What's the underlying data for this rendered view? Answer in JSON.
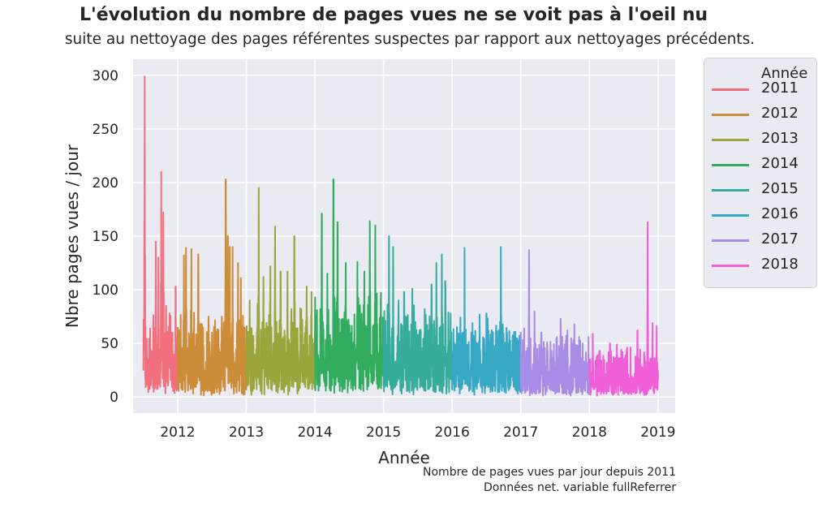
{
  "title": "L'évolution du nombre de pages vues ne se voit pas à l'oeil nu",
  "subtitle": "suite au nettoyage des pages référentes suspectes par rapport aux nettoyages précédents.",
  "caption": [
    "Nombre de pages vues par jour depuis 2011",
    "Données net. variable fullReferrer"
  ],
  "chart_data": {
    "type": "line",
    "xlabel": "Année",
    "ylabel": "Nbre pages vues / jour",
    "xlim": [
      2011.35,
      2019.25
    ],
    "ylim": [
      -15,
      315
    ],
    "xticks": [
      2012,
      2013,
      2014,
      2015,
      2016,
      2017,
      2018,
      2019
    ],
    "xtick_labels": [
      "2012",
      "2013",
      "2014",
      "2015",
      "2016",
      "2017",
      "2018",
      "2019"
    ],
    "yticks": [
      0,
      50,
      100,
      150,
      200,
      250,
      300
    ],
    "ytick_labels": [
      "0",
      "50",
      "100",
      "150",
      "200",
      "250",
      "300"
    ],
    "grid": true,
    "legend_title": "Année",
    "legend_position": "outside-right",
    "background": "#eaeaf2",
    "series": [
      {
        "name": "2011",
        "color": "#f2707e",
        "start": 2011.5,
        "end": 2012.0,
        "base": 28,
        "noise": 35,
        "peaks": [
          [
            2011.52,
            299
          ],
          [
            2011.56,
            35
          ],
          [
            2011.62,
            37
          ],
          [
            2011.68,
            145
          ],
          [
            2011.72,
            130
          ],
          [
            2011.76,
            210
          ],
          [
            2011.79,
            172
          ],
          [
            2011.83,
            85
          ],
          [
            2011.88,
            78
          ],
          [
            2011.97,
            103
          ]
        ]
      },
      {
        "name": "2012",
        "color": "#cd8c37",
        "start": 2012.0,
        "end": 2013.0,
        "base": 22,
        "noise": 40,
        "peaks": [
          [
            2012.09,
            132
          ],
          [
            2012.12,
            139
          ],
          [
            2012.2,
            138
          ],
          [
            2012.3,
            133
          ],
          [
            2012.45,
            75
          ],
          [
            2012.6,
            45
          ],
          [
            2012.7,
            203
          ],
          [
            2012.73,
            150
          ],
          [
            2012.76,
            140
          ],
          [
            2012.8,
            140
          ],
          [
            2012.88,
            125
          ],
          [
            2012.92,
            111
          ]
        ]
      },
      {
        "name": "2013",
        "color": "#9aa63b",
        "start": 2013.0,
        "end": 2014.0,
        "base": 30,
        "noise": 40,
        "peaks": [
          [
            2013.05,
            90
          ],
          [
            2013.18,
            195
          ],
          [
            2013.25,
            112
          ],
          [
            2013.35,
            122
          ],
          [
            2013.42,
            159
          ],
          [
            2013.5,
            117
          ],
          [
            2013.6,
            117
          ],
          [
            2013.7,
            150
          ],
          [
            2013.8,
            82
          ],
          [
            2013.88,
            103
          ],
          [
            2013.95,
            98
          ]
        ]
      },
      {
        "name": "2014",
        "color": "#32ad5f",
        "start": 2014.0,
        "end": 2015.0,
        "base": 35,
        "noise": 45,
        "peaks": [
          [
            2014.08,
            82
          ],
          [
            2014.1,
            171
          ],
          [
            2014.18,
            115
          ],
          [
            2014.27,
            203
          ],
          [
            2014.33,
            163
          ],
          [
            2014.45,
            125
          ],
          [
            2014.62,
            126
          ],
          [
            2014.72,
            117
          ],
          [
            2014.8,
            164
          ],
          [
            2014.88,
            160
          ],
          [
            2014.95,
            70
          ]
        ]
      },
      {
        "name": "2015",
        "color": "#36ad9c",
        "start": 2015.0,
        "end": 2016.0,
        "base": 28,
        "noise": 40,
        "peaks": [
          [
            2015.08,
            150
          ],
          [
            2015.14,
            140
          ],
          [
            2015.22,
            90
          ],
          [
            2015.3,
            98
          ],
          [
            2015.42,
            101
          ],
          [
            2015.6,
            82
          ],
          [
            2015.7,
            105
          ],
          [
            2015.77,
            125
          ],
          [
            2015.85,
            133
          ],
          [
            2015.9,
            108
          ]
        ]
      },
      {
        "name": "2016",
        "color": "#38a9c4",
        "start": 2016.0,
        "end": 2017.0,
        "base": 25,
        "noise": 35,
        "peaks": [
          [
            2016.07,
            65
          ],
          [
            2016.18,
            139
          ],
          [
            2016.28,
            60
          ],
          [
            2016.4,
            77
          ],
          [
            2016.5,
            78
          ],
          [
            2016.65,
            60
          ],
          [
            2016.71,
            140
          ],
          [
            2016.8,
            60
          ],
          [
            2016.88,
            50
          ]
        ]
      },
      {
        "name": "2017",
        "color": "#a78ce8",
        "start": 2017.0,
        "end": 2018.0,
        "base": 18,
        "noise": 30,
        "peaks": [
          [
            2017.05,
            64
          ],
          [
            2017.12,
            137
          ],
          [
            2017.2,
            80
          ],
          [
            2017.3,
            60
          ],
          [
            2017.45,
            43
          ],
          [
            2017.58,
            73
          ],
          [
            2017.68,
            62
          ],
          [
            2017.78,
            68
          ],
          [
            2017.85,
            56
          ],
          [
            2017.95,
            36
          ]
        ]
      },
      {
        "name": "2018",
        "color": "#f15fd8",
        "start": 2018.0,
        "end": 2019.0,
        "base": 14,
        "noise": 22,
        "peaks": [
          [
            2018.05,
            59
          ],
          [
            2018.15,
            43
          ],
          [
            2018.3,
            50
          ],
          [
            2018.4,
            49
          ],
          [
            2018.55,
            46
          ],
          [
            2018.7,
            62
          ],
          [
            2018.85,
            163
          ],
          [
            2018.92,
            69
          ],
          [
            2018.98,
            66
          ]
        ]
      }
    ]
  }
}
